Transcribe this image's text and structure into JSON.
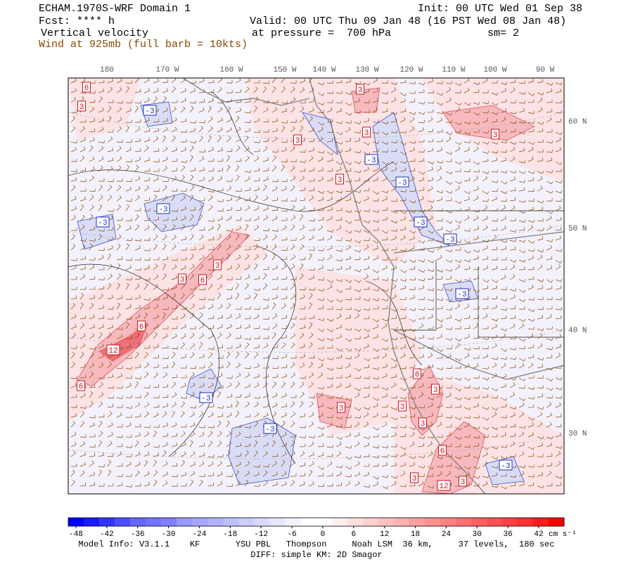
{
  "header": {
    "title": "ECHAM.1970S-WRF Domain 1",
    "init": "Init: 00 UTC Wed 01 Sep 38",
    "forecast": "Fcst: **** h",
    "valid": "Valid: 00 UTC Thu 09 Jan 48 (16 PST Wed 08 Jan 48)",
    "field": "Vertical velocity",
    "level": "at pressure =  700 hPa",
    "smoothing": "sm= 2",
    "wind": "Wind at 925mb (full barb = 10kts)"
  },
  "map": {
    "lon_labels": [
      "180",
      "170 W",
      "160 W",
      "150 W",
      "140 W",
      "130 W",
      "120 W",
      "110 W",
      "100 W",
      "90 W"
    ],
    "lat_labels": [
      "60 N",
      "50 N",
      "40 N",
      "30 N"
    ],
    "contour_labels": [
      6,
      3,
      -3,
      3,
      3,
      3,
      3,
      3,
      -3,
      -3,
      -3,
      -3,
      -3,
      -3,
      3,
      3,
      6,
      6,
      12,
      6,
      -3,
      3,
      -3,
      6,
      3,
      3,
      3,
      6,
      3,
      12,
      3,
      -3,
      -3
    ]
  },
  "colorbar": {
    "ticks": [
      -48,
      -42,
      -36,
      -30,
      -24,
      -18,
      -12,
      -6,
      0,
      6,
      12,
      18,
      24,
      30,
      36,
      42
    ],
    "unit": "cm s⁻¹",
    "colors": [
      "#0000ff",
      "#1a1aff",
      "#3333ff",
      "#4d4dff",
      "#6666ff",
      "#7373ff",
      "#8080ff",
      "#9999ff",
      "#a6a6ff",
      "#b3b3ff",
      "#bfbfff",
      "#ccccff",
      "#d9d9ff",
      "#e6e6ff",
      "#f2f2ff",
      "#ffffff",
      "#ffffff",
      "#fff0f0",
      "#ffe0e0",
      "#ffd0d0",
      "#ffc0c0",
      "#ffb0b0",
      "#ffa0a0",
      "#ff9090",
      "#ff8080",
      "#ff7070",
      "#ff6060",
      "#ff5050",
      "#ff4040",
      "#ff3030",
      "#ff1a1a",
      "#ff0000"
    ]
  },
  "footer": {
    "model_info": "Model Info: V3.1.1    KF       YSU PBL   Thompson     Noah LSM  36 km,     37 levels,  180 sec",
    "diff": "DIFF: simple KM: 2D Smagor"
  }
}
